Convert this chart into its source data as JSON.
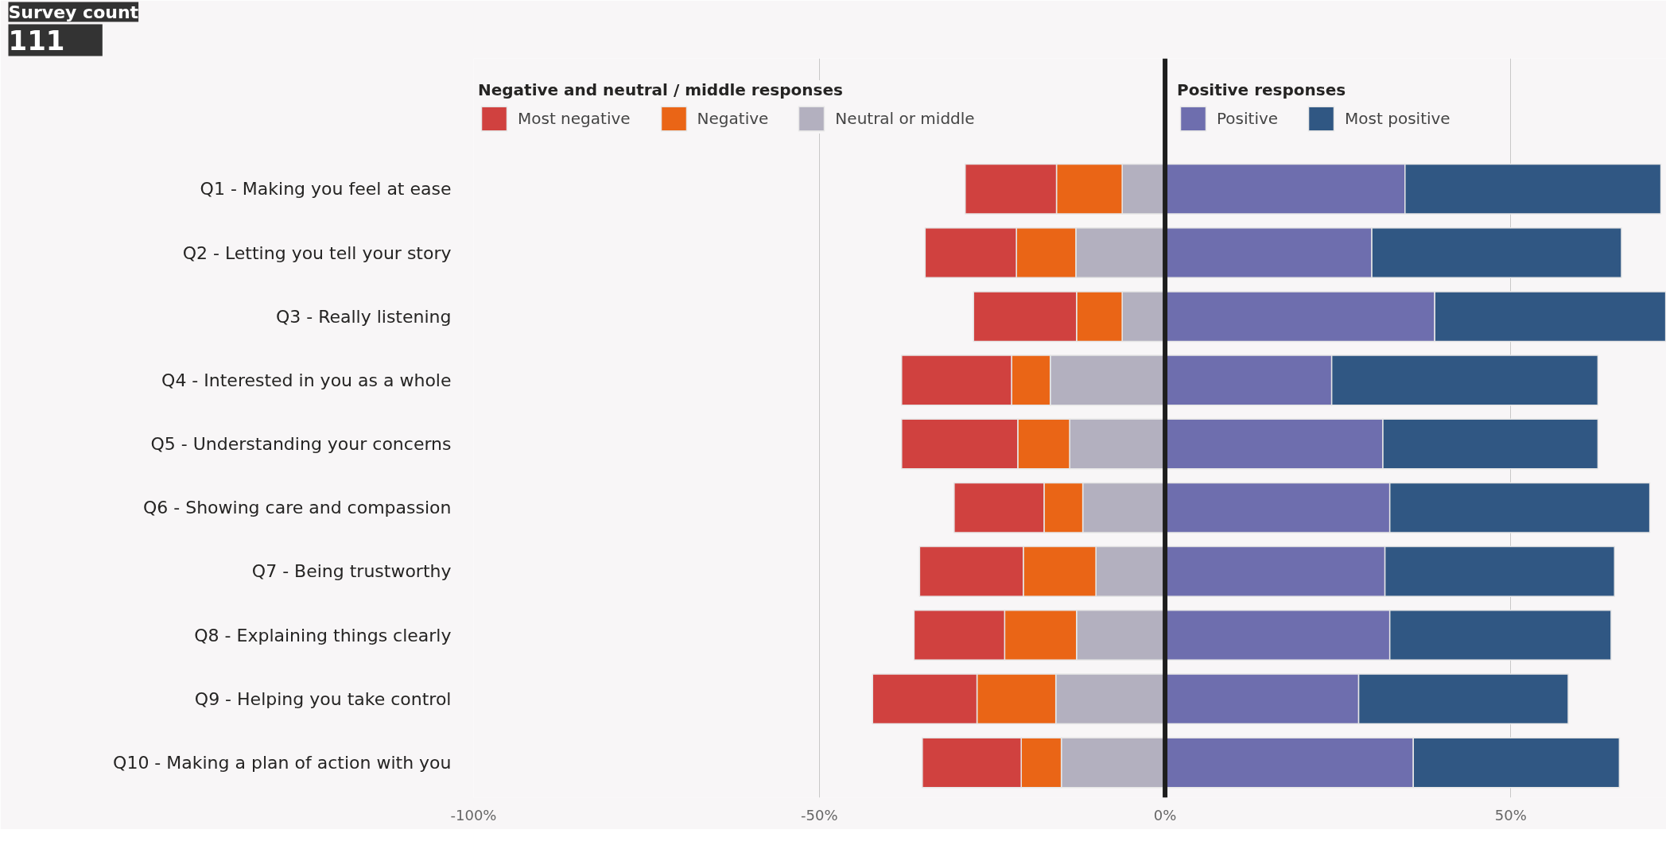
{
  "chart_data": {
    "type": "bar",
    "orientation": "horizontal",
    "stacked": true,
    "categories": [
      "Q1 - Making you feel at ease",
      "Q2 - Letting you tell your story",
      "Q3 - Really listening",
      "Q4 - Interested in you as a whole",
      "Q5 - Understanding your concerns",
      "Q6 - Showing care and compassion",
      "Q7 - Being trustworthy",
      "Q8 - Explaining things clearly",
      "Q9 - Helping you take control",
      "Q10 - Making a plan of action with you"
    ],
    "series": [
      {
        "name": "Neutral or middle",
        "color": "#b3b0bf",
        "values": [
          -6.2,
          -12.9,
          -6.2,
          -16.6,
          -13.8,
          -11.9,
          -10.0,
          -12.8,
          -15.8,
          -15.0
        ]
      },
      {
        "name": "Negative",
        "color": "#ea6516",
        "values": [
          -9.5,
          -8.6,
          -6.6,
          -5.6,
          -7.5,
          -5.6,
          -10.5,
          -10.4,
          -11.4,
          -5.8
        ]
      },
      {
        "name": "Most negative",
        "color": "#d0413f",
        "values": [
          -13.2,
          -13.2,
          -14.9,
          -15.9,
          -16.8,
          -13.0,
          -15.0,
          -13.1,
          -15.1,
          -14.3
        ]
      },
      {
        "name": "Positive",
        "color": "#6e6eae",
        "values": [
          34.7,
          29.9,
          39.0,
          24.1,
          31.5,
          32.5,
          31.8,
          32.5,
          28.0,
          35.9
        ]
      },
      {
        "name": "Most positive",
        "color": "#305783",
        "values": [
          37.0,
          36.1,
          33.4,
          38.5,
          31.1,
          37.6,
          33.2,
          32.0,
          30.3,
          29.8
        ]
      }
    ],
    "xlim": [
      -100,
      72.5
    ],
    "xticks": [
      {
        "value": -100,
        "label": "-100%"
      },
      {
        "value": -50,
        "label": "-50%"
      },
      {
        "value": 0,
        "label": "0%"
      },
      {
        "value": 50,
        "label": "50%"
      }
    ],
    "grid": "x",
    "legend": "top",
    "legend_title": "Negative and neutral / middle responses",
    "annotations": [
      "Survey count",
      "111",
      "Positive responses"
    ],
    "ref_lines": [
      {
        "axis": "x",
        "value": 0,
        "color": "#1e1e1e"
      }
    ]
  }
}
